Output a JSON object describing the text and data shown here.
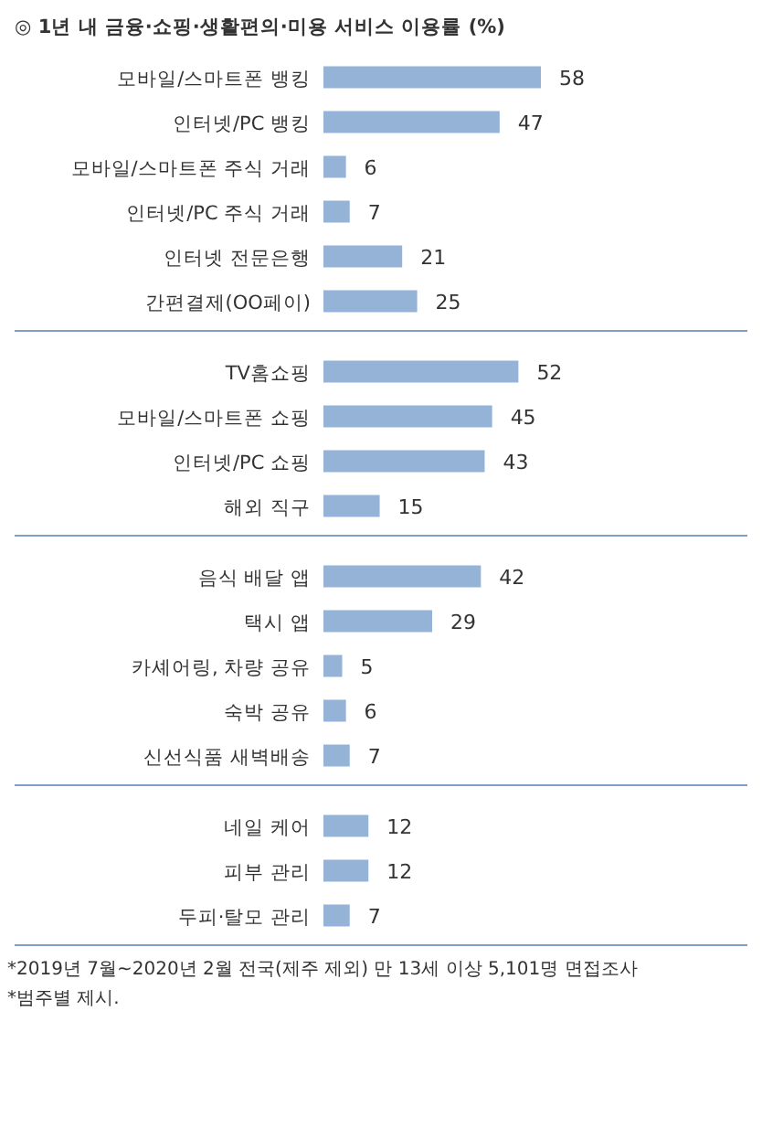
{
  "chart_data": [
    {
      "type": "bar",
      "orientation": "horizontal",
      "title": "◎ 1년 내 금융·쇼핑·생활편의·미용 서비스 이용률 (%)",
      "categories": [
        "모바일/스마트폰 뱅킹",
        "인터넷/PC 뱅킹",
        "모바일/스마트폰 주식 거래",
        "인터넷/PC 주식 거래",
        "인터넷 전문은행",
        "간편결제(OO페이)"
      ],
      "values": [
        58,
        47,
        6,
        7,
        21,
        25
      ],
      "color": "#95b3d7",
      "data_labels": true
    },
    {
      "type": "bar",
      "orientation": "horizontal",
      "categories": [
        "TV홈쇼핑",
        "모바일/스마트폰 쇼핑",
        "인터넷/PC 쇼핑",
        "해외 직구"
      ],
      "values": [
        52,
        45,
        43,
        15
      ],
      "color": "#95b3d7",
      "data_labels": true
    },
    {
      "type": "bar",
      "orientation": "horizontal",
      "categories": [
        "음식 배달 앱",
        "택시 앱",
        "카셰어링, 차량 공유",
        "숙박 공유",
        "신선식품 새벽배송"
      ],
      "values": [
        42,
        29,
        5,
        6,
        7
      ],
      "color": "#95b3d7",
      "data_labels": true
    },
    {
      "type": "bar",
      "orientation": "horizontal",
      "categories": [
        "네일 케어",
        "피부 관리",
        "두피·탈모 관리"
      ],
      "values": [
        12,
        12,
        7
      ],
      "color": "#95b3d7",
      "data_labels": true,
      "annotations": [
        "*2019년 7월~2020년 2월 전국(제주 제외) 만 13세 이상 5,101명 면접조사",
        "*범주별 제시."
      ]
    }
  ]
}
